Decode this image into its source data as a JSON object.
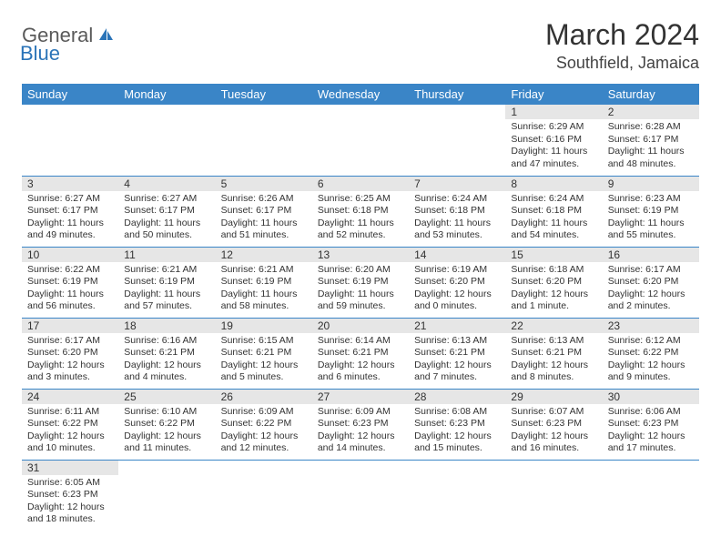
{
  "logo": {
    "text1": "General",
    "text2": "Blue"
  },
  "title": "March 2024",
  "location": "Southfield, Jamaica",
  "colors": {
    "header_bg": "#3a85c7",
    "header_text": "#ffffff",
    "daynum_bg": "#e6e6e6",
    "border": "#3a85c7",
    "logo_gray": "#5a5a5a",
    "logo_blue": "#2b74b8"
  },
  "weekdays": [
    "Sunday",
    "Monday",
    "Tuesday",
    "Wednesday",
    "Thursday",
    "Friday",
    "Saturday"
  ],
  "weeks": [
    [
      null,
      null,
      null,
      null,
      null,
      {
        "n": "1",
        "sr": "Sunrise: 6:29 AM",
        "ss": "Sunset: 6:16 PM",
        "dl1": "Daylight: 11 hours",
        "dl2": "and 47 minutes."
      },
      {
        "n": "2",
        "sr": "Sunrise: 6:28 AM",
        "ss": "Sunset: 6:17 PM",
        "dl1": "Daylight: 11 hours",
        "dl2": "and 48 minutes."
      }
    ],
    [
      {
        "n": "3",
        "sr": "Sunrise: 6:27 AM",
        "ss": "Sunset: 6:17 PM",
        "dl1": "Daylight: 11 hours",
        "dl2": "and 49 minutes."
      },
      {
        "n": "4",
        "sr": "Sunrise: 6:27 AM",
        "ss": "Sunset: 6:17 PM",
        "dl1": "Daylight: 11 hours",
        "dl2": "and 50 minutes."
      },
      {
        "n": "5",
        "sr": "Sunrise: 6:26 AM",
        "ss": "Sunset: 6:17 PM",
        "dl1": "Daylight: 11 hours",
        "dl2": "and 51 minutes."
      },
      {
        "n": "6",
        "sr": "Sunrise: 6:25 AM",
        "ss": "Sunset: 6:18 PM",
        "dl1": "Daylight: 11 hours",
        "dl2": "and 52 minutes."
      },
      {
        "n": "7",
        "sr": "Sunrise: 6:24 AM",
        "ss": "Sunset: 6:18 PM",
        "dl1": "Daylight: 11 hours",
        "dl2": "and 53 minutes."
      },
      {
        "n": "8",
        "sr": "Sunrise: 6:24 AM",
        "ss": "Sunset: 6:18 PM",
        "dl1": "Daylight: 11 hours",
        "dl2": "and 54 minutes."
      },
      {
        "n": "9",
        "sr": "Sunrise: 6:23 AM",
        "ss": "Sunset: 6:19 PM",
        "dl1": "Daylight: 11 hours",
        "dl2": "and 55 minutes."
      }
    ],
    [
      {
        "n": "10",
        "sr": "Sunrise: 6:22 AM",
        "ss": "Sunset: 6:19 PM",
        "dl1": "Daylight: 11 hours",
        "dl2": "and 56 minutes."
      },
      {
        "n": "11",
        "sr": "Sunrise: 6:21 AM",
        "ss": "Sunset: 6:19 PM",
        "dl1": "Daylight: 11 hours",
        "dl2": "and 57 minutes."
      },
      {
        "n": "12",
        "sr": "Sunrise: 6:21 AM",
        "ss": "Sunset: 6:19 PM",
        "dl1": "Daylight: 11 hours",
        "dl2": "and 58 minutes."
      },
      {
        "n": "13",
        "sr": "Sunrise: 6:20 AM",
        "ss": "Sunset: 6:19 PM",
        "dl1": "Daylight: 11 hours",
        "dl2": "and 59 minutes."
      },
      {
        "n": "14",
        "sr": "Sunrise: 6:19 AM",
        "ss": "Sunset: 6:20 PM",
        "dl1": "Daylight: 12 hours",
        "dl2": "and 0 minutes."
      },
      {
        "n": "15",
        "sr": "Sunrise: 6:18 AM",
        "ss": "Sunset: 6:20 PM",
        "dl1": "Daylight: 12 hours",
        "dl2": "and 1 minute."
      },
      {
        "n": "16",
        "sr": "Sunrise: 6:17 AM",
        "ss": "Sunset: 6:20 PM",
        "dl1": "Daylight: 12 hours",
        "dl2": "and 2 minutes."
      }
    ],
    [
      {
        "n": "17",
        "sr": "Sunrise: 6:17 AM",
        "ss": "Sunset: 6:20 PM",
        "dl1": "Daylight: 12 hours",
        "dl2": "and 3 minutes."
      },
      {
        "n": "18",
        "sr": "Sunrise: 6:16 AM",
        "ss": "Sunset: 6:21 PM",
        "dl1": "Daylight: 12 hours",
        "dl2": "and 4 minutes."
      },
      {
        "n": "19",
        "sr": "Sunrise: 6:15 AM",
        "ss": "Sunset: 6:21 PM",
        "dl1": "Daylight: 12 hours",
        "dl2": "and 5 minutes."
      },
      {
        "n": "20",
        "sr": "Sunrise: 6:14 AM",
        "ss": "Sunset: 6:21 PM",
        "dl1": "Daylight: 12 hours",
        "dl2": "and 6 minutes."
      },
      {
        "n": "21",
        "sr": "Sunrise: 6:13 AM",
        "ss": "Sunset: 6:21 PM",
        "dl1": "Daylight: 12 hours",
        "dl2": "and 7 minutes."
      },
      {
        "n": "22",
        "sr": "Sunrise: 6:13 AM",
        "ss": "Sunset: 6:21 PM",
        "dl1": "Daylight: 12 hours",
        "dl2": "and 8 minutes."
      },
      {
        "n": "23",
        "sr": "Sunrise: 6:12 AM",
        "ss": "Sunset: 6:22 PM",
        "dl1": "Daylight: 12 hours",
        "dl2": "and 9 minutes."
      }
    ],
    [
      {
        "n": "24",
        "sr": "Sunrise: 6:11 AM",
        "ss": "Sunset: 6:22 PM",
        "dl1": "Daylight: 12 hours",
        "dl2": "and 10 minutes."
      },
      {
        "n": "25",
        "sr": "Sunrise: 6:10 AM",
        "ss": "Sunset: 6:22 PM",
        "dl1": "Daylight: 12 hours",
        "dl2": "and 11 minutes."
      },
      {
        "n": "26",
        "sr": "Sunrise: 6:09 AM",
        "ss": "Sunset: 6:22 PM",
        "dl1": "Daylight: 12 hours",
        "dl2": "and 12 minutes."
      },
      {
        "n": "27",
        "sr": "Sunrise: 6:09 AM",
        "ss": "Sunset: 6:23 PM",
        "dl1": "Daylight: 12 hours",
        "dl2": "and 14 minutes."
      },
      {
        "n": "28",
        "sr": "Sunrise: 6:08 AM",
        "ss": "Sunset: 6:23 PM",
        "dl1": "Daylight: 12 hours",
        "dl2": "and 15 minutes."
      },
      {
        "n": "29",
        "sr": "Sunrise: 6:07 AM",
        "ss": "Sunset: 6:23 PM",
        "dl1": "Daylight: 12 hours",
        "dl2": "and 16 minutes."
      },
      {
        "n": "30",
        "sr": "Sunrise: 6:06 AM",
        "ss": "Sunset: 6:23 PM",
        "dl1": "Daylight: 12 hours",
        "dl2": "and 17 minutes."
      }
    ],
    [
      {
        "n": "31",
        "sr": "Sunrise: 6:05 AM",
        "ss": "Sunset: 6:23 PM",
        "dl1": "Daylight: 12 hours",
        "dl2": "and 18 minutes."
      },
      null,
      null,
      null,
      null,
      null,
      null
    ]
  ]
}
